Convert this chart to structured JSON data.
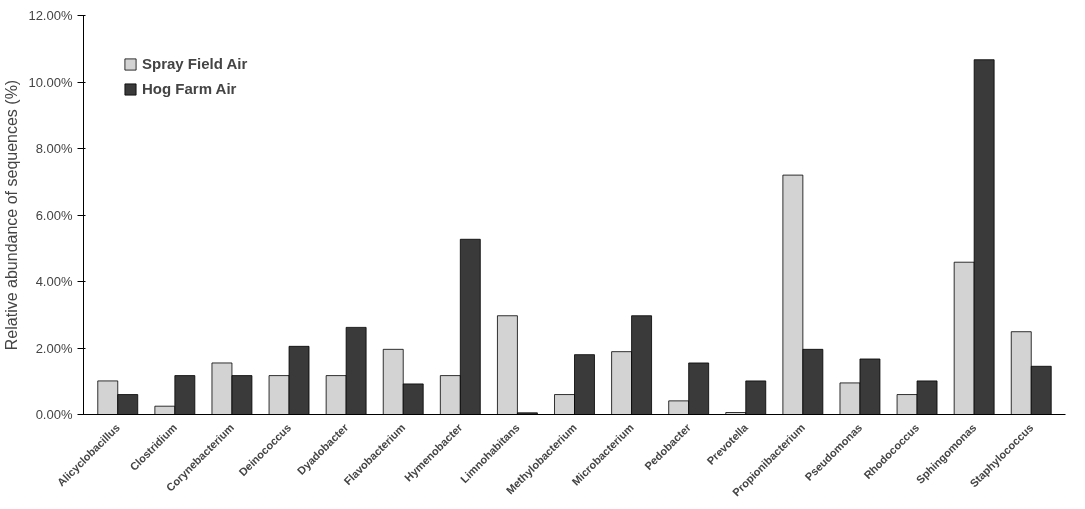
{
  "chart_data": {
    "type": "bar",
    "ylabel": "Relative abundance of sequences (%)",
    "categories": [
      "Alicyclobacillus",
      "Clostridium",
      "Corynebacterium",
      "Deinococcus",
      "Dyadobacter",
      "Flavobacterium",
      "Hymenobacter",
      "Limnohabitans",
      "Methylobacterium",
      "Microbacterium",
      "Pedobacter",
      "Prevotella",
      "Propionibacterium",
      "Pseudomonas",
      "Rhodococcus",
      "Sphingomonas",
      "Staphylococcus"
    ],
    "series": [
      {
        "name": "Spray Field Air",
        "color": "#d3d3d3",
        "values": [
          1.01,
          0.25,
          1.55,
          1.17,
          1.17,
          1.96,
          1.17,
          2.97,
          0.6,
          1.89,
          0.41,
          0.06,
          7.2,
          0.95,
          0.6,
          4.58,
          2.49
        ]
      },
      {
        "name": "Hog Farm Air",
        "color": "#3a3a3a",
        "values": [
          0.6,
          1.17,
          1.17,
          2.05,
          2.62,
          0.92,
          5.27,
          0.05,
          1.8,
          2.97,
          1.55,
          1.01,
          1.96,
          1.67,
          1.01,
          10.67,
          1.45
        ]
      }
    ],
    "ylim": [
      0,
      12
    ],
    "yticks": [
      {
        "value": 0,
        "label": "0.00%"
      },
      {
        "value": 2,
        "label": "2.00%"
      },
      {
        "value": 4,
        "label": "4.00%"
      },
      {
        "value": 6,
        "label": "6.00%"
      },
      {
        "value": 8,
        "label": "8.00%"
      },
      {
        "value": 10,
        "label": "10.00%"
      },
      {
        "value": 12,
        "label": "12.00%"
      }
    ],
    "grid": false,
    "legend": "top left"
  }
}
